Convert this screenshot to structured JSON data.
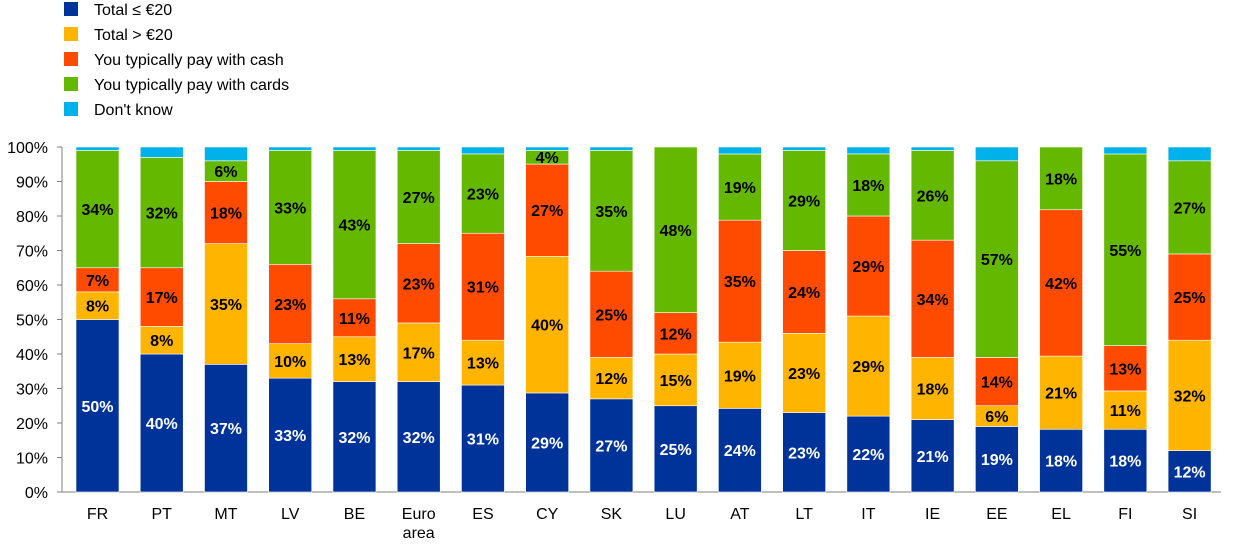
{
  "chart_data": {
    "type": "bar",
    "stacked": true,
    "percent_stacked": true,
    "categories": [
      "FR",
      "PT",
      "MT",
      "LV",
      "BE",
      "Euro area",
      "ES",
      "CY",
      "SK",
      "LU",
      "AT",
      "LT",
      "IT",
      "IE",
      "EE",
      "EL",
      "FI",
      "SI"
    ],
    "series": [
      {
        "name": "Total ≤ €20",
        "color": "#003399",
        "values": [
          50,
          40,
          37,
          33,
          32,
          32,
          31,
          29,
          27,
          25,
          24,
          23,
          22,
          21,
          19,
          18,
          18,
          12
        ]
      },
      {
        "name": "Total > €20",
        "color": "#ffb400",
        "values": [
          8,
          8,
          35,
          10,
          13,
          17,
          13,
          40,
          12,
          15,
          19,
          23,
          29,
          18,
          6,
          21,
          11,
          32
        ]
      },
      {
        "name": "You typically pay with cash",
        "color": "#ff4b00",
        "values": [
          7,
          17,
          18,
          23,
          11,
          23,
          31,
          27,
          25,
          12,
          35,
          24,
          29,
          34,
          14,
          42,
          13,
          25
        ]
      },
      {
        "name": "You typically pay with cards",
        "color": "#65b800",
        "values": [
          34,
          32,
          6,
          33,
          43,
          27,
          23,
          4,
          35,
          48,
          19,
          29,
          18,
          26,
          57,
          18,
          55,
          27
        ]
      },
      {
        "name": "Don't know",
        "color": "#00b1ea",
        "values": [
          1,
          3,
          4,
          1,
          1,
          1,
          2,
          1,
          1,
          0,
          2,
          1,
          2,
          1,
          4,
          0,
          2,
          4
        ]
      }
    ],
    "label_colors": [
      "#ffffff",
      "#000000",
      "#000000",
      "#000000",
      "#000000"
    ],
    "series_with_data_labels": [
      0,
      1,
      2,
      3
    ],
    "ylim": [
      0,
      100
    ],
    "yticks": [
      "0%",
      "10%",
      "20%",
      "30%",
      "40%",
      "50%",
      "60%",
      "70%",
      "80%",
      "90%",
      "100%"
    ],
    "value_suffix": "%",
    "legend_position": "top-left",
    "grid": false
  }
}
